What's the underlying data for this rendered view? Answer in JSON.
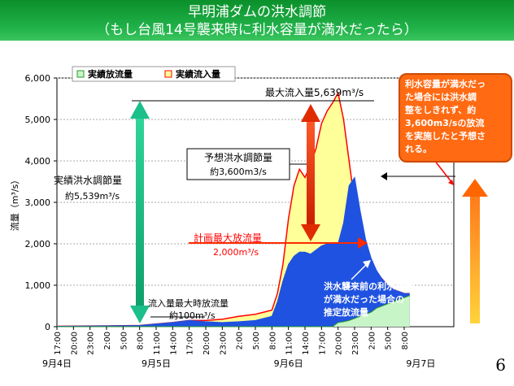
{
  "slide": {
    "title_line1": "早明浦ダムの洪水調節",
    "title_line2": "（もし台風14号襲来時に利水容量が満水だったら）",
    "page_number": "6"
  },
  "callout_lines": [
    "利水容量が満水だっ",
    "た場合には洪水調",
    "整をしきれず、約",
    "3,600m3/sの放流",
    "を実施したと予想さ",
    "れる。"
  ],
  "annotations": {
    "max_inflow": "最大流入量5,639m³/s",
    "expected_control_1": "予想洪水調節量",
    "expected_control_2": "約3,600m3/s",
    "actual_control_1": "実績洪水調節量",
    "actual_control_2": "約5,539m³/s",
    "planned_max_1": "計画最大放流量",
    "planned_max_2": "2,000m³/s",
    "min_control_1": "流入量最大時放流量",
    "min_control_2": "約100m³/s",
    "estimated_1": "洪水襲来前の利水容量",
    "estimated_2": "が満水だった場合の",
    "estimated_3": "推定放流量"
  },
  "colors": {
    "inflow_fill": "#ffff99",
    "inflow_line": "#ff0000",
    "estimated_fill": "#1f52e0",
    "actual_fill": "#c8f5c8",
    "green_arrow": "#1abf8a",
    "red_arrow": "#e02a00",
    "orange_arrow": "#ff6600"
  },
  "chart_data": {
    "type": "area",
    "ylabel": "流量（m³/s）",
    "ylim": [
      0,
      6000
    ],
    "yticks": [
      0,
      1000,
      2000,
      3000,
      4000,
      5000,
      6000
    ],
    "ytick_labels": [
      "0",
      "1,000",
      "2,000",
      "3,000",
      "4,000",
      "5,000",
      "6,000"
    ],
    "xlim": [
      17,
      89
    ],
    "xtick_labels": [
      "17:00",
      "20:00",
      "23:00",
      "2:00",
      "5:00",
      "8:00",
      "11:00",
      "14:00",
      "17:00",
      "20:00",
      "23:00",
      "2:00",
      "5:00",
      "8:00",
      "11:00",
      "14:00",
      "17:00",
      "20:00",
      "23:00",
      "2:00",
      "5:00",
      "8:00"
    ],
    "xtick_positions": [
      17,
      20,
      23,
      26,
      29,
      32,
      35,
      38,
      41,
      44,
      47,
      50,
      53,
      56,
      59,
      62,
      65,
      68,
      71,
      74,
      77,
      80
    ],
    "date_labels": [
      {
        "text": "9月4日",
        "x": 17
      },
      {
        "text": "9月5日",
        "x": 35
      },
      {
        "text": "9月6日",
        "x": 59
      },
      {
        "text": "9月7日",
        "x": 83
      }
    ],
    "legend": [
      "実績放流量",
      "実績流入量"
    ],
    "legend_position": "top-left",
    "series": [
      {
        "name": "実績流入量",
        "x": [
          17,
          26,
          32,
          38,
          41,
          44,
          47,
          50,
          53,
          56,
          57,
          58,
          59,
          60,
          61,
          62,
          63,
          64,
          65,
          66,
          67,
          68,
          69,
          70,
          71,
          72,
          73,
          74,
          75,
          76,
          77,
          78,
          79,
          80,
          81
        ],
        "y": [
          10,
          20,
          30,
          100,
          150,
          150,
          180,
          250,
          300,
          400,
          800,
          1500,
          2600,
          3400,
          3800,
          3600,
          3900,
          4300,
          4900,
          5200,
          5400,
          5639,
          5000,
          4000,
          3000,
          2300,
          1800,
          1500,
          1300,
          1150,
          1000,
          900,
          850,
          800,
          800
        ]
      },
      {
        "name": "推定放流量",
        "x": [
          17,
          26,
          32,
          38,
          41,
          44,
          47,
          50,
          53,
          56,
          57,
          58,
          59,
          60,
          61,
          62,
          63,
          64,
          65,
          66,
          67,
          68,
          69,
          70,
          71,
          72,
          73,
          74,
          75,
          76,
          77,
          78,
          79,
          80,
          81
        ],
        "y": [
          10,
          20,
          30,
          100,
          150,
          120,
          100,
          120,
          150,
          250,
          600,
          1100,
          1500,
          1700,
          1800,
          1800,
          1750,
          1850,
          1950,
          2000,
          2000,
          2000,
          2500,
          3400,
          3600,
          2800,
          2100,
          1650,
          1350,
          1150,
          1000,
          900,
          850,
          800,
          800
        ]
      },
      {
        "name": "実績放流量",
        "x": [
          17,
          67,
          68,
          69,
          70,
          71,
          72,
          73,
          74,
          75,
          76,
          77,
          78,
          79,
          80,
          81
        ],
        "y": [
          0,
          0,
          100,
          120,
          150,
          200,
          250,
          300,
          350,
          450,
          500,
          550,
          600,
          650,
          700,
          750
        ]
      }
    ]
  }
}
